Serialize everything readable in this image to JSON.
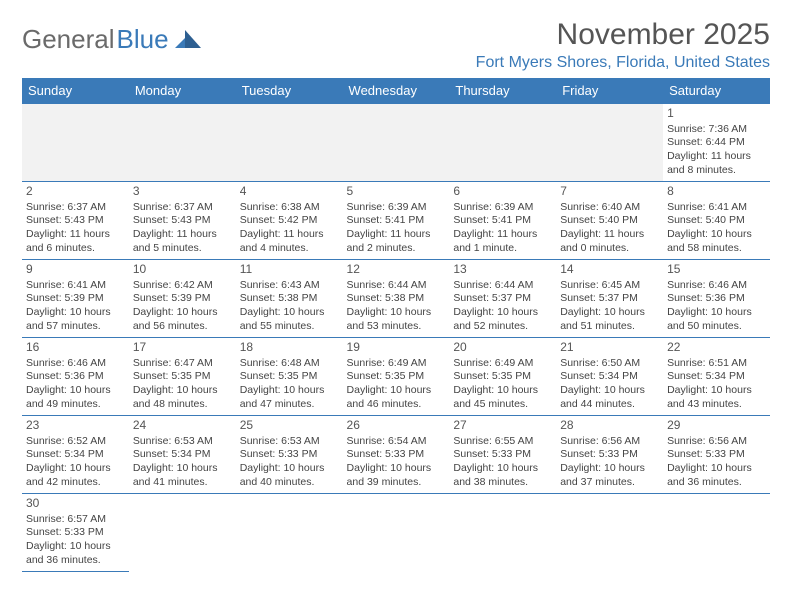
{
  "logo": {
    "text1": "General",
    "text2": "Blue"
  },
  "title": "November 2025",
  "location": "Fort Myers Shores, Florida, United States",
  "colors": {
    "header_bg": "#3a7ab8",
    "header_text": "#ffffff",
    "border": "#3a7ab8",
    "empty_bg": "#f2f2f2",
    "body_text": "#444444",
    "title_text": "#555555"
  },
  "daynames": [
    "Sunday",
    "Monday",
    "Tuesday",
    "Wednesday",
    "Thursday",
    "Friday",
    "Saturday"
  ],
  "weeks": [
    [
      null,
      null,
      null,
      null,
      null,
      null,
      {
        "n": "1",
        "sr": "Sunrise: 7:36 AM",
        "ss": "Sunset: 6:44 PM",
        "d1": "Daylight: 11 hours",
        "d2": "and 8 minutes."
      }
    ],
    [
      {
        "n": "2",
        "sr": "Sunrise: 6:37 AM",
        "ss": "Sunset: 5:43 PM",
        "d1": "Daylight: 11 hours",
        "d2": "and 6 minutes."
      },
      {
        "n": "3",
        "sr": "Sunrise: 6:37 AM",
        "ss": "Sunset: 5:43 PM",
        "d1": "Daylight: 11 hours",
        "d2": "and 5 minutes."
      },
      {
        "n": "4",
        "sr": "Sunrise: 6:38 AM",
        "ss": "Sunset: 5:42 PM",
        "d1": "Daylight: 11 hours",
        "d2": "and 4 minutes."
      },
      {
        "n": "5",
        "sr": "Sunrise: 6:39 AM",
        "ss": "Sunset: 5:41 PM",
        "d1": "Daylight: 11 hours",
        "d2": "and 2 minutes."
      },
      {
        "n": "6",
        "sr": "Sunrise: 6:39 AM",
        "ss": "Sunset: 5:41 PM",
        "d1": "Daylight: 11 hours",
        "d2": "and 1 minute."
      },
      {
        "n": "7",
        "sr": "Sunrise: 6:40 AM",
        "ss": "Sunset: 5:40 PM",
        "d1": "Daylight: 11 hours",
        "d2": "and 0 minutes."
      },
      {
        "n": "8",
        "sr": "Sunrise: 6:41 AM",
        "ss": "Sunset: 5:40 PM",
        "d1": "Daylight: 10 hours",
        "d2": "and 58 minutes."
      }
    ],
    [
      {
        "n": "9",
        "sr": "Sunrise: 6:41 AM",
        "ss": "Sunset: 5:39 PM",
        "d1": "Daylight: 10 hours",
        "d2": "and 57 minutes."
      },
      {
        "n": "10",
        "sr": "Sunrise: 6:42 AM",
        "ss": "Sunset: 5:39 PM",
        "d1": "Daylight: 10 hours",
        "d2": "and 56 minutes."
      },
      {
        "n": "11",
        "sr": "Sunrise: 6:43 AM",
        "ss": "Sunset: 5:38 PM",
        "d1": "Daylight: 10 hours",
        "d2": "and 55 minutes."
      },
      {
        "n": "12",
        "sr": "Sunrise: 6:44 AM",
        "ss": "Sunset: 5:38 PM",
        "d1": "Daylight: 10 hours",
        "d2": "and 53 minutes."
      },
      {
        "n": "13",
        "sr": "Sunrise: 6:44 AM",
        "ss": "Sunset: 5:37 PM",
        "d1": "Daylight: 10 hours",
        "d2": "and 52 minutes."
      },
      {
        "n": "14",
        "sr": "Sunrise: 6:45 AM",
        "ss": "Sunset: 5:37 PM",
        "d1": "Daylight: 10 hours",
        "d2": "and 51 minutes."
      },
      {
        "n": "15",
        "sr": "Sunrise: 6:46 AM",
        "ss": "Sunset: 5:36 PM",
        "d1": "Daylight: 10 hours",
        "d2": "and 50 minutes."
      }
    ],
    [
      {
        "n": "16",
        "sr": "Sunrise: 6:46 AM",
        "ss": "Sunset: 5:36 PM",
        "d1": "Daylight: 10 hours",
        "d2": "and 49 minutes."
      },
      {
        "n": "17",
        "sr": "Sunrise: 6:47 AM",
        "ss": "Sunset: 5:35 PM",
        "d1": "Daylight: 10 hours",
        "d2": "and 48 minutes."
      },
      {
        "n": "18",
        "sr": "Sunrise: 6:48 AM",
        "ss": "Sunset: 5:35 PM",
        "d1": "Daylight: 10 hours",
        "d2": "and 47 minutes."
      },
      {
        "n": "19",
        "sr": "Sunrise: 6:49 AM",
        "ss": "Sunset: 5:35 PM",
        "d1": "Daylight: 10 hours",
        "d2": "and 46 minutes."
      },
      {
        "n": "20",
        "sr": "Sunrise: 6:49 AM",
        "ss": "Sunset: 5:35 PM",
        "d1": "Daylight: 10 hours",
        "d2": "and 45 minutes."
      },
      {
        "n": "21",
        "sr": "Sunrise: 6:50 AM",
        "ss": "Sunset: 5:34 PM",
        "d1": "Daylight: 10 hours",
        "d2": "and 44 minutes."
      },
      {
        "n": "22",
        "sr": "Sunrise: 6:51 AM",
        "ss": "Sunset: 5:34 PM",
        "d1": "Daylight: 10 hours",
        "d2": "and 43 minutes."
      }
    ],
    [
      {
        "n": "23",
        "sr": "Sunrise: 6:52 AM",
        "ss": "Sunset: 5:34 PM",
        "d1": "Daylight: 10 hours",
        "d2": "and 42 minutes."
      },
      {
        "n": "24",
        "sr": "Sunrise: 6:53 AM",
        "ss": "Sunset: 5:34 PM",
        "d1": "Daylight: 10 hours",
        "d2": "and 41 minutes."
      },
      {
        "n": "25",
        "sr": "Sunrise: 6:53 AM",
        "ss": "Sunset: 5:33 PM",
        "d1": "Daylight: 10 hours",
        "d2": "and 40 minutes."
      },
      {
        "n": "26",
        "sr": "Sunrise: 6:54 AM",
        "ss": "Sunset: 5:33 PM",
        "d1": "Daylight: 10 hours",
        "d2": "and 39 minutes."
      },
      {
        "n": "27",
        "sr": "Sunrise: 6:55 AM",
        "ss": "Sunset: 5:33 PM",
        "d1": "Daylight: 10 hours",
        "d2": "and 38 minutes."
      },
      {
        "n": "28",
        "sr": "Sunrise: 6:56 AM",
        "ss": "Sunset: 5:33 PM",
        "d1": "Daylight: 10 hours",
        "d2": "and 37 minutes."
      },
      {
        "n": "29",
        "sr": "Sunrise: 6:56 AM",
        "ss": "Sunset: 5:33 PM",
        "d1": "Daylight: 10 hours",
        "d2": "and 36 minutes."
      }
    ],
    [
      {
        "n": "30",
        "sr": "Sunrise: 6:57 AM",
        "ss": "Sunset: 5:33 PM",
        "d1": "Daylight: 10 hours",
        "d2": "and 36 minutes."
      },
      null,
      null,
      null,
      null,
      null,
      null
    ]
  ]
}
